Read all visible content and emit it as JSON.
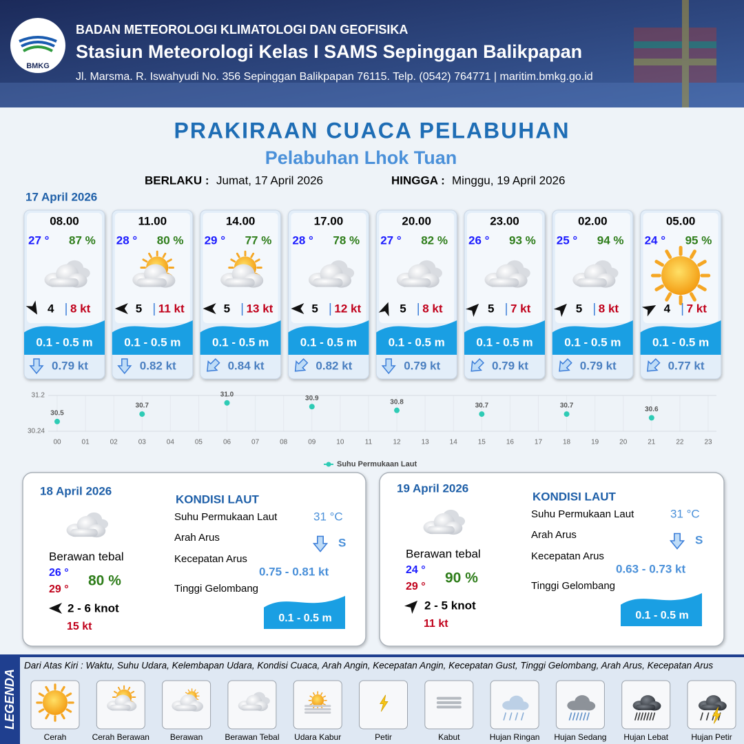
{
  "header": {
    "logo": "BMKG",
    "organization": "BADAN METEOROLOGI KLIMATOLOGI DAN GEOFISIKA",
    "station": "Stasiun Meteorologi Kelas I SAMS Sepinggan Balikpapan",
    "address": "Jl. Marsma. R. Iswahyudi No. 356 Sepinggan Balikpapan 76115. Telp. (0542) 764771 | maritim.bmkg.go.id"
  },
  "title": "PRAKIRAAN CUACA PELABUHAN",
  "subtitle": "Pelabuhan Lhok Tuan",
  "validity": {
    "from_label": "BERLAKU :",
    "from": "Jumat, 17 April 2026",
    "to_label": "HINGGA :",
    "to": "Minggu, 19 April 2026"
  },
  "day1": {
    "date": "17 April 2026",
    "cards": [
      {
        "time": "08.00",
        "temp": "27 °",
        "humidity": "87 %",
        "condition": "Berawan Tebal",
        "wind_dir": 150,
        "wind": "4",
        "gust": "8 kt",
        "wave": "0.1 - 0.5 m",
        "current_dir": 180,
        "current": "0.79 kt"
      },
      {
        "time": "11.00",
        "temp": "28 °",
        "humidity": "80 %",
        "condition": "Cerah Berawan",
        "wind_dir": 270,
        "wind": "5",
        "gust": "11 kt",
        "wave": "0.1 - 0.5 m",
        "current_dir": 180,
        "current": "0.82 kt"
      },
      {
        "time": "14.00",
        "temp": "29 °",
        "humidity": "77 %",
        "condition": "Cerah Berawan",
        "wind_dir": 270,
        "wind": "5",
        "gust": "13 kt",
        "wave": "0.1 - 0.5 m",
        "current_dir": 225,
        "current": "0.84 kt"
      },
      {
        "time": "17.00",
        "temp": "28 °",
        "humidity": "78 %",
        "condition": "Berawan Tebal",
        "wind_dir": 270,
        "wind": "5",
        "gust": "12 kt",
        "wave": "0.1 - 0.5 m",
        "current_dir": 225,
        "current": "0.82 kt"
      },
      {
        "time": "20.00",
        "temp": "27 °",
        "humidity": "82 %",
        "condition": "Berawan Tebal",
        "wind_dir": 20,
        "wind": "5",
        "gust": "8 kt",
        "wave": "0.1 - 0.5 m",
        "current_dir": 180,
        "current": "0.79 kt"
      },
      {
        "time": "23.00",
        "temp": "26 °",
        "humidity": "93 %",
        "condition": "Berawan Tebal",
        "wind_dir": 45,
        "wind": "5",
        "gust": "7 kt",
        "wave": "0.1 - 0.5 m",
        "current_dir": 225,
        "current": "0.79 kt"
      },
      {
        "time": "02.00",
        "temp": "25 °",
        "humidity": "94 %",
        "condition": "Berawan Tebal",
        "wind_dir": 45,
        "wind": "5",
        "gust": "8 kt",
        "wave": "0.1 - 0.5 m",
        "current_dir": 225,
        "current": "0.79 kt"
      },
      {
        "time": "05.00",
        "temp": "24 °",
        "humidity": "95 %",
        "condition": "Cerah",
        "wind_dir": 60,
        "wind": "4",
        "gust": "7 kt",
        "wave": "0.1 - 0.5 m",
        "current_dir": 225,
        "current": "0.77 kt"
      }
    ]
  },
  "chart_data": {
    "type": "scatter",
    "x": [
      0,
      3,
      6,
      9,
      12,
      15,
      18,
      21
    ],
    "series": [
      {
        "name": "Suhu Permukaan Laut",
        "color": "#2ecbb5",
        "values": [
          30.5,
          30.7,
          31.0,
          30.9,
          30.8,
          30.7,
          30.7,
          30.6
        ],
        "value_labels": [
          "30.5",
          "30.7",
          "31.0",
          "30.9",
          "30.8",
          "30.7",
          "30.7",
          "30.6"
        ]
      }
    ],
    "xlim": [
      0,
      23
    ],
    "xticks": [
      {
        "value": 0,
        "label": "00"
      },
      {
        "value": 1,
        "label": "01"
      },
      {
        "value": 2,
        "label": "02"
      },
      {
        "value": 3,
        "label": "03"
      },
      {
        "value": 4,
        "label": "04"
      },
      {
        "value": 5,
        "label": "05"
      },
      {
        "value": 6,
        "label": "06"
      },
      {
        "value": 7,
        "label": "07"
      },
      {
        "value": 8,
        "label": "08"
      },
      {
        "value": 9,
        "label": "09"
      },
      10,
      11,
      12,
      13,
      14,
      15,
      16,
      17,
      18,
      19,
      20,
      21,
      22,
      23
    ],
    "ylim": [
      30.24,
      31.2
    ],
    "yticks": [
      30.24,
      31.2
    ],
    "grid": true
  },
  "days": [
    {
      "date": "18 April 2026",
      "icon": "Berawan Tebal",
      "condition": "Berawan tebal",
      "temp_min": "26 °",
      "temp_max": "29 °",
      "humidity": "80 %",
      "wind_dir": 270,
      "wind": "2  - 6 knot",
      "gust": "15 kt",
      "sea": {
        "heading": "KONDISI LAUT",
        "sst_label": "Suhu Permukaan Laut",
        "sst": "31 °C",
        "current_dir_label": "Arah Arus",
        "current_arrow": 180,
        "current_dir": "S",
        "current_speed_label": "Kecepatan Arus",
        "current_speed": "0.75  - 0.81 kt",
        "wave_label": "Tinggi Gelombang",
        "wave": "0.1 - 0.5 m"
      }
    },
    {
      "date": "19 April 2026",
      "icon": "Berawan Tebal",
      "condition": "Berawan tebal",
      "temp_min": "24 °",
      "temp_max": "29 °",
      "humidity": "90 %",
      "wind_dir": 45,
      "wind": "2  - 5 knot",
      "gust": "11 kt",
      "sea": {
        "heading": "KONDISI LAUT",
        "sst_label": "Suhu Permukaan Laut",
        "sst": "31 °C",
        "current_dir_label": "Arah Arus",
        "current_arrow": 180,
        "current_dir": "S",
        "current_speed_label": "Kecepatan Arus",
        "current_speed": "0.63  - 0.73 kt",
        "wave_label": "Tinggi Gelombang",
        "wave": "0.1 - 0.5 m"
      }
    }
  ],
  "legend": {
    "title": "LEGENDA",
    "description": "Dari Atas Kiri : Waktu, Suhu Udara, Kelembapan Udara, Kondisi Cuaca, Arah Angin, Kecepatan Angin, Kecepatan Gust, Tinggi Gelombang, Arah Arus, Kecepatan Arus",
    "items": [
      "Cerah",
      "Cerah Berawan",
      "Berawan",
      "Berawan Tebal",
      "Udara Kabur",
      "Petir",
      "Kabut",
      "Hujan Ringan",
      "Hujan Sedang",
      "Hujan Lebat",
      "Hujan Petir"
    ]
  }
}
